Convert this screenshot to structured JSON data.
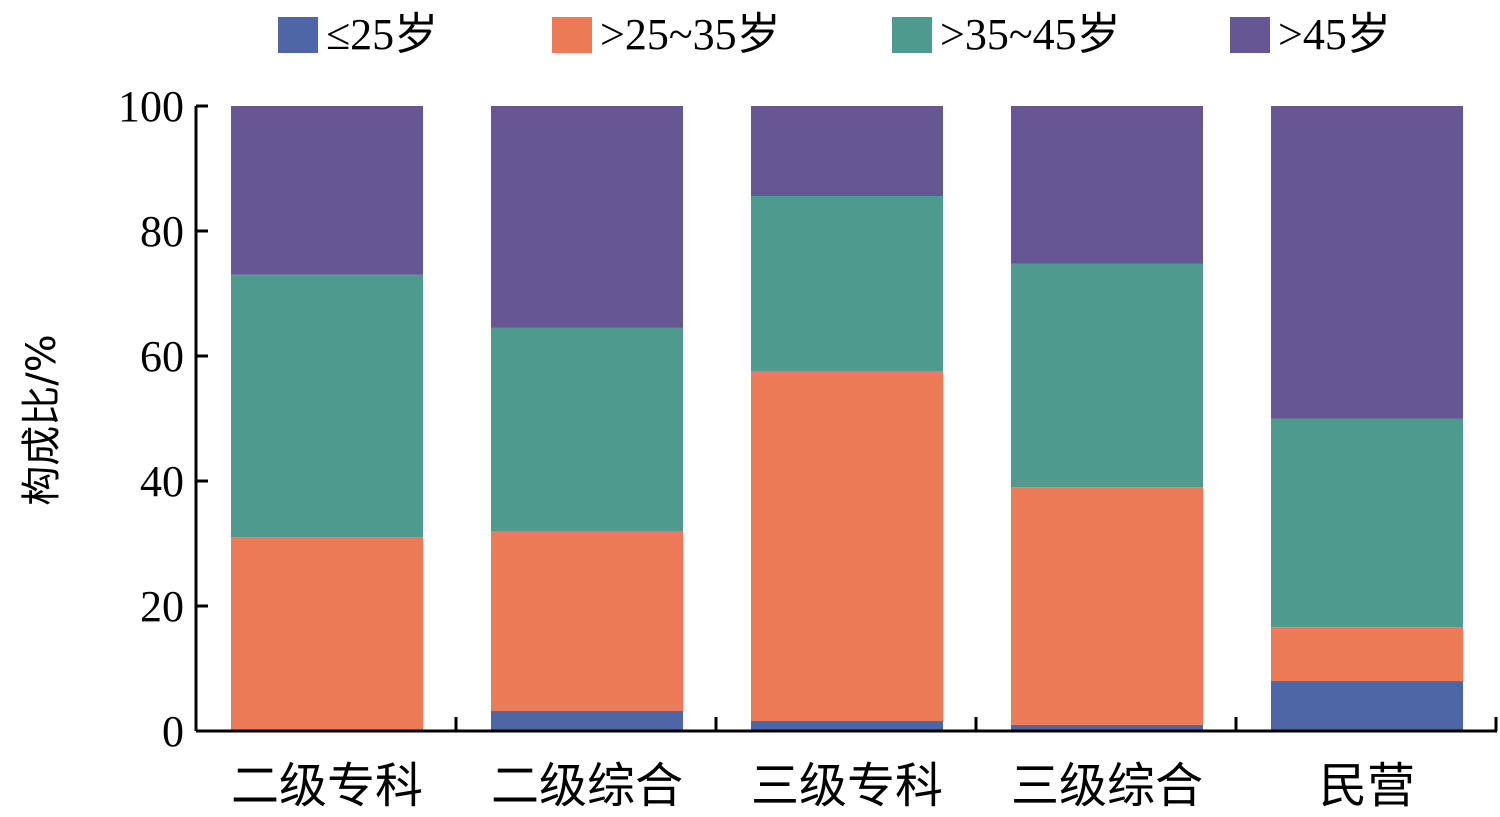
{
  "chart_data": {
    "type": "bar",
    "stacked": true,
    "categories": [
      "二级专科",
      "二级综合",
      "三级专科",
      "三级综合",
      "民营"
    ],
    "series": [
      {
        "name": "≤25岁",
        "color": "#4f66a6",
        "values": [
          0,
          3.2,
          1.6,
          1.0,
          8.0
        ]
      },
      {
        "name": ">25~35岁",
        "color": "#ec7a56",
        "values": [
          31.0,
          28.8,
          56.0,
          38.0,
          8.6
        ]
      },
      {
        "name": ">35~45岁",
        "color": "#4f9a8f",
        "values": [
          42.0,
          32.5,
          28.0,
          35.8,
          33.4
        ]
      },
      {
        "name": ">45岁",
        "color": "#665693",
        "values": [
          27.0,
          35.5,
          14.4,
          25.2,
          50.0
        ]
      }
    ],
    "title": "",
    "xlabel": "",
    "ylabel": "构成比/%",
    "ylim": [
      0,
      100
    ],
    "yticks": [
      0,
      20,
      40,
      60,
      80,
      100
    ],
    "grid": false,
    "legend": "top"
  }
}
